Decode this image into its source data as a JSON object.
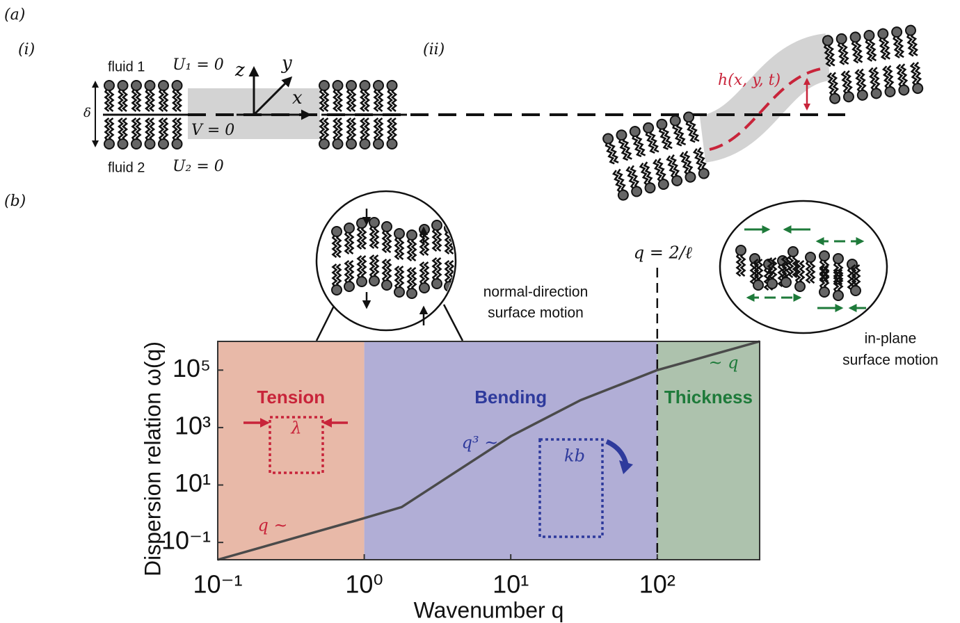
{
  "panel_labels": {
    "a": "(a)",
    "i": "(i)",
    "ii": "(ii)",
    "b": "(b)"
  },
  "schematic": {
    "fluid_1": "fluid 1",
    "fluid_2": "fluid 2",
    "U1": "U₁ = 0",
    "U2": "U₂ = 0",
    "V": "V = 0",
    "delta": "δ",
    "axis_z": "z",
    "axis_y": "y",
    "axis_x": "x",
    "height": "h(x, y, t)"
  },
  "chart_data": {
    "type": "line",
    "x_label": "Wavenumber q",
    "y_label": "Dispersion relation ω(q)",
    "xlog": true,
    "ylog": true,
    "xlim": [
      0.1,
      500
    ],
    "ylim": [
      0.025,
      1000000
    ],
    "xticks": [
      {
        "value": 0.1,
        "label": "10⁻¹"
      },
      {
        "value": 1,
        "label": "10⁰"
      },
      {
        "value": 10,
        "label": "10¹"
      },
      {
        "value": 100,
        "label": "10²"
      }
    ],
    "yticks": [
      {
        "value": 0.1,
        "label": "10⁻¹"
      },
      {
        "value": 10,
        "label": "10¹"
      },
      {
        "value": 1000,
        "label": "10³"
      },
      {
        "value": 100000,
        "label": "10⁵"
      }
    ],
    "x": [
      0.1,
      1,
      1.8,
      10,
      30,
      100,
      500
    ],
    "series": [
      {
        "color": "#4a4a4a",
        "values": [
          0.025,
          0.7,
          1.7,
          500,
          9000,
          100000,
          1000000
        ]
      }
    ],
    "regions": [
      {
        "name": "Tension",
        "from": 0.1,
        "to": 1,
        "color": "#e8b9a8",
        "text_color": "#c8243a"
      },
      {
        "name": "Bending",
        "from": 1,
        "to": 100,
        "color": "#b1aed6",
        "text_color": "#2e3a9c"
      },
      {
        "name": "Thickness",
        "from": 100,
        "to": 500,
        "color": "#adc2ad",
        "text_color": "#1e7a3a"
      }
    ],
    "crossover": {
      "x": 100,
      "label": "q = 2/ℓ"
    },
    "annotations": {
      "tension_scaling": "q ~",
      "bending_scaling": "q³ ~",
      "thickness_scaling": "~ q",
      "lambda": "λ",
      "kb": "kb"
    },
    "normal_motion": [
      "normal-direction",
      "surface motion"
    ],
    "inplane_motion": [
      "in-plane",
      "surface motion"
    ]
  }
}
